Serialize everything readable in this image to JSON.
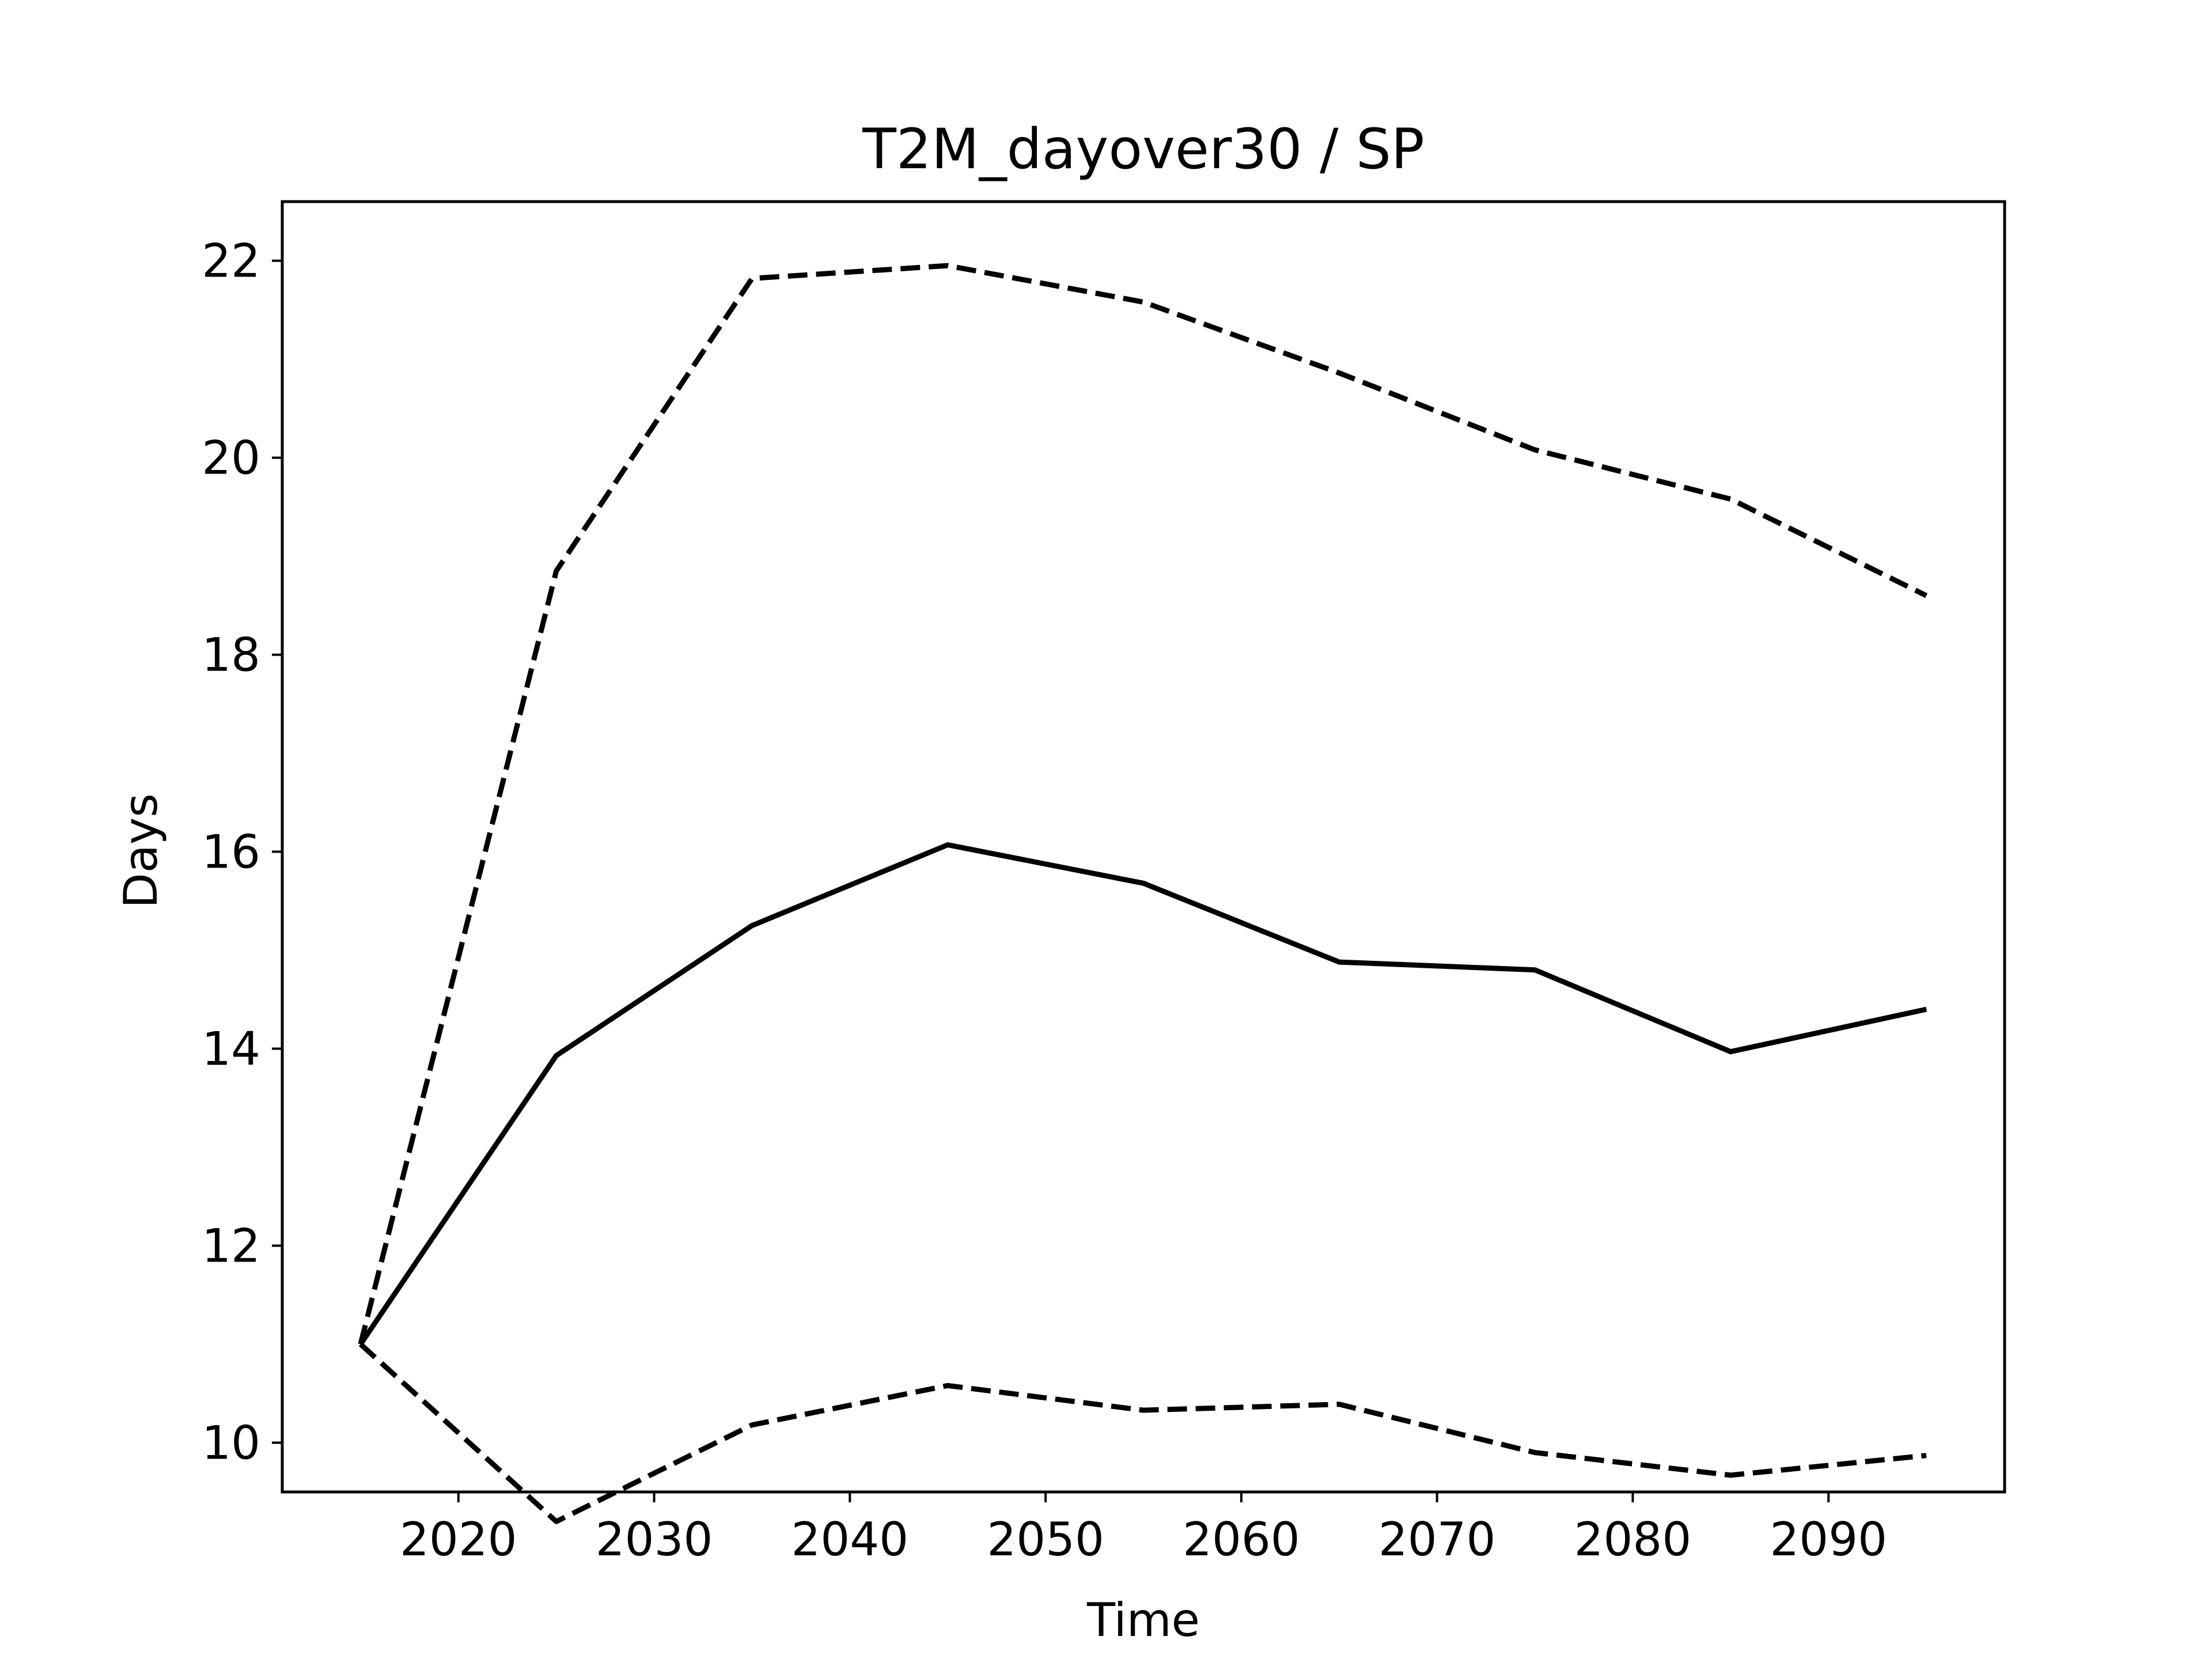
{
  "chart_data": {
    "type": "line",
    "title": "T2M_dayover30 / SP",
    "xlabel": "Time",
    "ylabel": "Days",
    "xlim": [
      2011,
      2099
    ],
    "ylim": [
      9.5,
      22.6
    ],
    "xticks": [
      2020,
      2030,
      2040,
      2050,
      2060,
      2070,
      2080,
      2090
    ],
    "yticks": [
      10,
      12,
      14,
      16,
      18,
      20,
      22
    ],
    "grid": false,
    "x": [
      2015,
      2025,
      2035,
      2045,
      2055,
      2065,
      2075,
      2085,
      2095
    ],
    "series": [
      {
        "style": "dashed",
        "color": "#000000",
        "values": [
          11.0,
          18.85,
          21.82,
          21.95,
          21.58,
          20.86,
          20.08,
          19.58,
          18.6
        ]
      },
      {
        "style": "solid",
        "color": "#000000",
        "values": [
          11.0,
          13.93,
          15.25,
          16.07,
          15.68,
          14.88,
          14.8,
          13.97,
          14.4
        ]
      },
      {
        "style": "dashed",
        "color": "#000000",
        "values": [
          11.0,
          9.2,
          10.18,
          10.58,
          10.33,
          10.39,
          9.9,
          9.67,
          9.87
        ]
      }
    ]
  }
}
